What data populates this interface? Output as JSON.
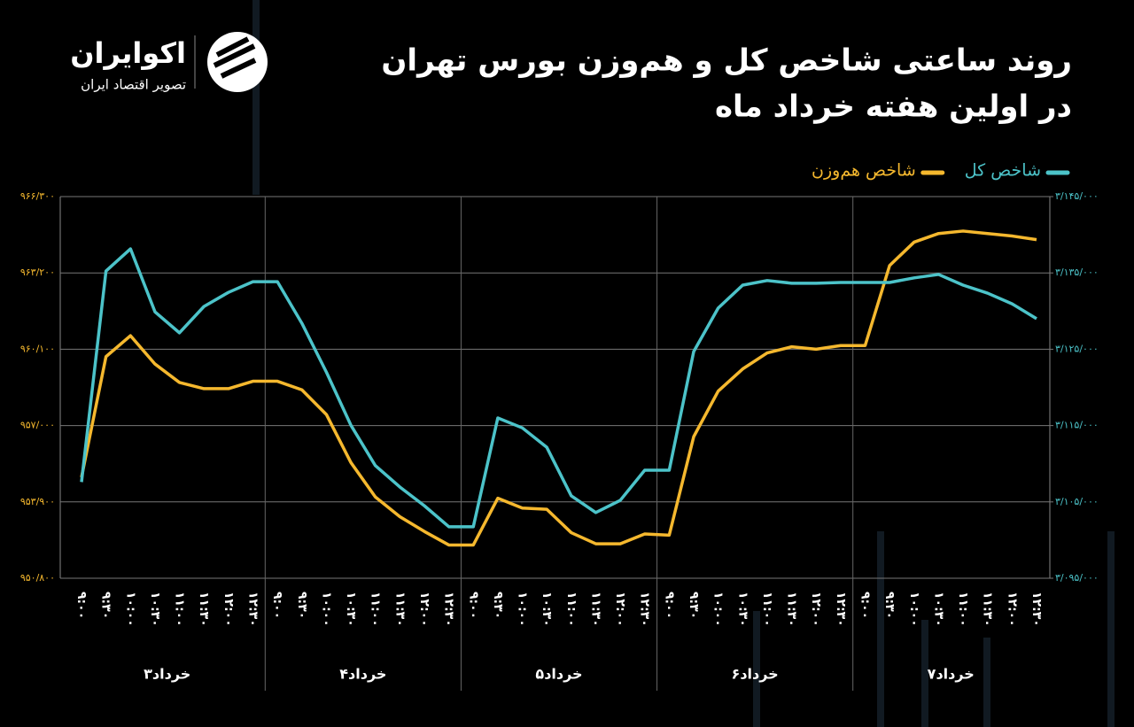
{
  "brand": {
    "name": "اکوایران",
    "tagline": "تصویر اقتصاد ایران"
  },
  "chart_data": {
    "type": "line",
    "title": "روند ساعتی شاخص کل و هم‌وزن بورس تهران",
    "subtitle": "در اولین هفته خرداد ماه",
    "categories": [
      "۹:۰۰",
      "۹:۳۰",
      "۱۰:۰۰",
      "۱۰:۳۰",
      "۱۱:۰۰",
      "۱۱:۳۰",
      "۱۲:۰۰",
      "۱۲:۳۰",
      "۹:۰۰",
      "۹:۳۰",
      "۱۰:۰۰",
      "۱۰:۳۰",
      "۱۱:۰۰",
      "۱۱:۳۰",
      "۱۲:۰۰",
      "۱۲:۳۰",
      "۹:۰۰",
      "۹:۳۰",
      "۱۰:۰۰",
      "۱۰:۳۰",
      "۱۱:۰۰",
      "۱۱:۳۰",
      "۱۲:۰۰",
      "۱۲:۳۰",
      "۹:۰۰",
      "۹:۳۰",
      "۱۰:۰۰",
      "۱۰:۳۰",
      "۱۱:۰۰",
      "۱۱:۳۰",
      "۱۲:۰۰",
      "۱۲:۳۰",
      "۹:۰۰",
      "۹:۳۰",
      "۱۰:۰۰",
      "۱۰:۳۰",
      "۱۱:۰۰",
      "۱۱:۳۰",
      "۱۲:۰۰",
      "۱۲:۳۰"
    ],
    "groups": [
      "۳خرداد",
      "۴خرداد",
      "۵خرداد",
      "۶خرداد",
      "۷خرداد"
    ],
    "series": [
      {
        "name": "شاخص کل",
        "color": "#4cc3c9",
        "axis": "y2",
        "values": [
          3107600,
          3135250,
          3138150,
          3129900,
          3127150,
          3130600,
          3132450,
          3133850,
          3133850,
          3128400,
          3122000,
          3115050,
          3109750,
          3106950,
          3104500,
          3101750,
          3101750,
          3116000,
          3114700,
          3112150,
          3105800,
          3103600,
          3105200,
          3109150,
          3109150,
          3124700,
          3130400,
          3133400,
          3134000,
          3133650,
          3133650,
          3133750,
          3133750,
          3133750,
          3134350,
          3134800,
          3133400,
          3132350,
          3130950,
          3129000
        ]
      },
      {
        "name": "شاخص هم‌وزن",
        "color": "#f5b82e",
        "values": [
          954900,
          959800,
          960650,
          959500,
          958750,
          958500,
          958500,
          958800,
          958800,
          958450,
          957450,
          955500,
          954100,
          953300,
          952700,
          952150,
          952150,
          954050,
          953650,
          953600,
          952650,
          952200,
          952200,
          952600,
          952550,
          956550,
          958400,
          959300,
          959950,
          960200,
          960100,
          960250,
          960250,
          963500,
          964450,
          964800,
          964900,
          964800,
          964700,
          964550
        ]
      }
    ],
    "ylim": [
      950800,
      966300
    ],
    "yticks": [
      {
        "value": 950800,
        "label": "۹۵۰/۸۰۰"
      },
      {
        "value": 953900,
        "label": "۹۵۳/۹۰۰"
      },
      {
        "value": 957000,
        "label": "۹۵۷/۰۰۰"
      },
      {
        "value": 960100,
        "label": "۹۶۰/۱۰۰"
      },
      {
        "value": 963200,
        "label": "۹۶۳/۲۰۰"
      },
      {
        "value": 966300,
        "label": "۹۶۶/۳۰۰"
      }
    ],
    "y2lim": [
      3095000,
      3145000
    ],
    "y2ticks": [
      {
        "value": 3095000,
        "label": "۳/۰۹۵/۰۰۰"
      },
      {
        "value": 3105000,
        "label": "۳/۱۰۵/۰۰۰"
      },
      {
        "value": 3115000,
        "label": "۳/۱۱۵/۰۰۰"
      },
      {
        "value": 3125000,
        "label": "۳/۱۲۵/۰۰۰"
      },
      {
        "value": 3135000,
        "label": "۳/۱۳۵/۰۰۰"
      },
      {
        "value": 3145000,
        "label": "۳/۱۴۵/۰۰۰"
      }
    ],
    "grid": true
  }
}
